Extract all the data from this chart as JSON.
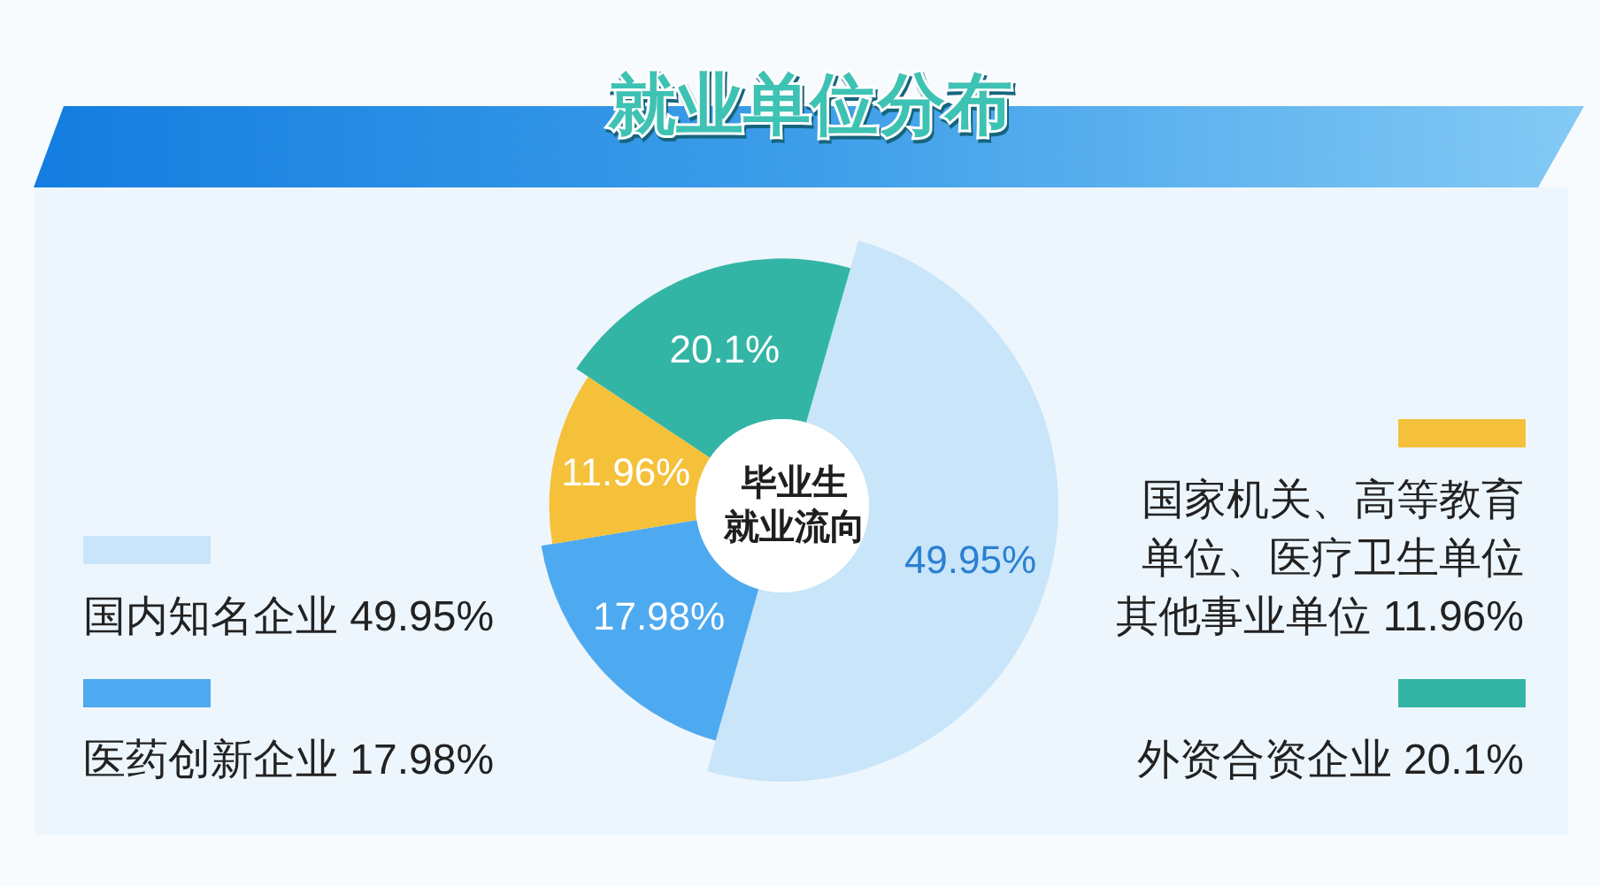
{
  "chart_data": {
    "type": "donut",
    "title": "就业单位分布",
    "categories": [
      "国内知名企业",
      "医药创新企业",
      "国家机关、高等教育单位、医疗卫生单位其他事业单位",
      "外资合资企业"
    ],
    "values": [
      49.95,
      17.98,
      11.96,
      20.1
    ],
    "colors": [
      "#c9e5f9",
      "#4eaaf0",
      "#f5c13a",
      "#33b5a5"
    ],
    "value_labels": [
      "49.95%",
      "17.98%",
      "11.96%",
      "20.1%"
    ],
    "annotations": [
      "毕业生就业流向"
    ],
    "legend": "left right"
  }
}
